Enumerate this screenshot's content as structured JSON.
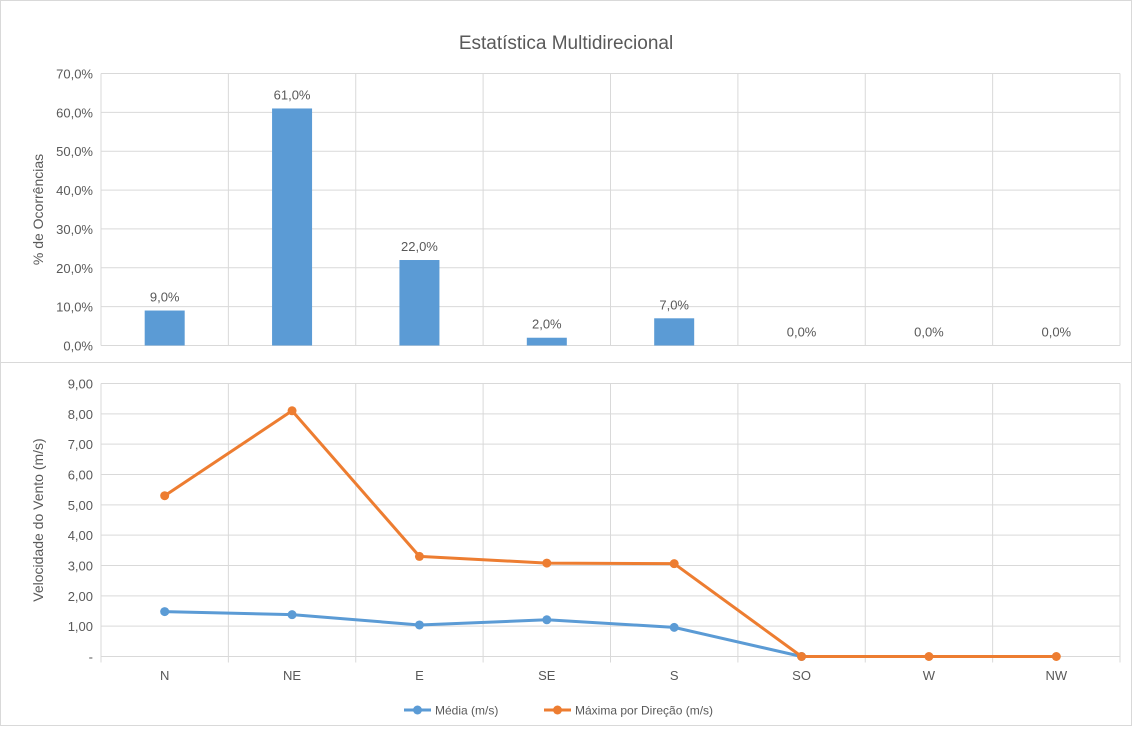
{
  "title": "Estatística Multidirecional",
  "colors": {
    "bar": "#5B9BD5",
    "media": "#5B9BD5",
    "maxima": "#ED7D31",
    "grid": "#D9D9D9",
    "text": "#595959",
    "frame": "#D9D9D9"
  },
  "chart_data": [
    {
      "type": "bar",
      "title": "Estatística Multidirecional",
      "categories": [
        "N",
        "NE",
        "E",
        "SE",
        "S",
        "SO",
        "W",
        "NW"
      ],
      "values": [
        9.0,
        61.0,
        22.0,
        2.0,
        7.0,
        0.0,
        0.0,
        0.0
      ],
      "value_labels": [
        "9,0%",
        "61,0%",
        "22,0%",
        "2,0%",
        "7,0%",
        "0,0%",
        "0,0%",
        "0,0%"
      ],
      "ylabel": "% de Ocorrências",
      "ylim": [
        0,
        70
      ],
      "yticks": [
        "0,0%",
        "10,0%",
        "20,0%",
        "30,0%",
        "40,0%",
        "50,0%",
        "60,0%",
        "70,0%"
      ],
      "grid": true
    },
    {
      "type": "line",
      "categories": [
        "N",
        "NE",
        "E",
        "SE",
        "S",
        "SO",
        "W",
        "NW"
      ],
      "series": [
        {
          "name": "Média (m/s)",
          "values": [
            1.48,
            1.38,
            1.04,
            1.21,
            0.96,
            0.0,
            null,
            null
          ]
        },
        {
          "name": "Máxima por Direção (m/s)",
          "values": [
            5.3,
            8.1,
            3.3,
            3.08,
            3.06,
            0.0,
            0.0,
            0.0
          ]
        }
      ],
      "ylabel": "Velocidade do Vento (m/s)",
      "ylim": [
        0,
        9
      ],
      "yticks": [
        "-",
        "1,00",
        "2,00",
        "3,00",
        "4,00",
        "5,00",
        "6,00",
        "7,00",
        "8,00",
        "9,00"
      ],
      "grid": true,
      "legend": "bottom"
    }
  ]
}
